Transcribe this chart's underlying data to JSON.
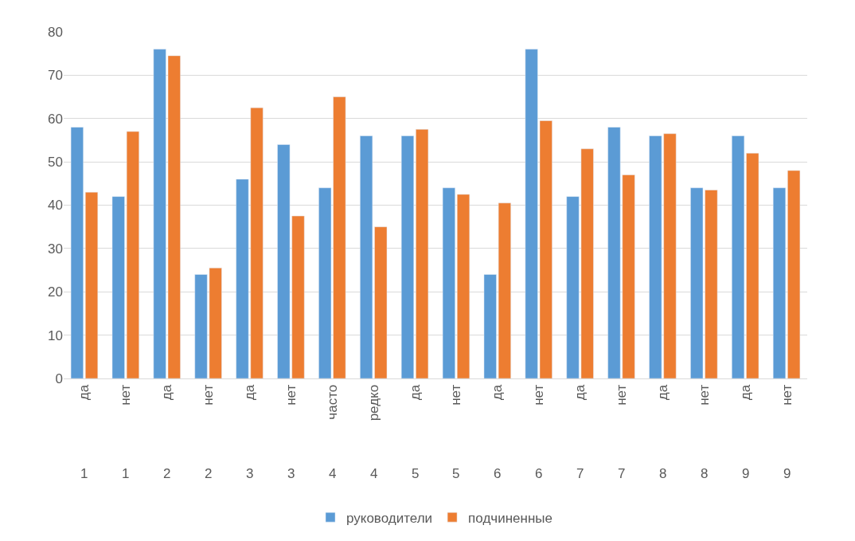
{
  "chart_data": {
    "type": "bar",
    "categories": [
      "да",
      "нет",
      "да",
      "нет",
      "да",
      "нет",
      "часто",
      "редко",
      "да",
      "нет",
      "да",
      "нет",
      "да",
      "нет",
      "да",
      "нет",
      "да",
      "нет"
    ],
    "series": [
      {
        "name": "руководители",
        "color": "#5b9bd5",
        "values": [
          58,
          42,
          76,
          24,
          46,
          54,
          44,
          56,
          56,
          44,
          24,
          76,
          42,
          58,
          56,
          44,
          56,
          44
        ]
      },
      {
        "name": "подчиненные",
        "color": "#ed7d31",
        "values": [
          43,
          57,
          74.5,
          25.5,
          62.5,
          37.5,
          65,
          35,
          57.5,
          42.5,
          40.5,
          59.5,
          53,
          47,
          56.5,
          43.5,
          52,
          48
        ]
      }
    ],
    "annotations": [
      "1",
      "1",
      "2",
      "2",
      "3",
      "3",
      "4",
      "4",
      "5",
      "5",
      "6",
      "6",
      "7",
      "7",
      "8",
      "8",
      "9",
      "9"
    ],
    "ylim": [
      0,
      80
    ],
    "yticks": [
      0,
      10,
      20,
      30,
      40,
      50,
      60,
      70,
      80
    ],
    "grid": "y",
    "legend": "bottom"
  }
}
